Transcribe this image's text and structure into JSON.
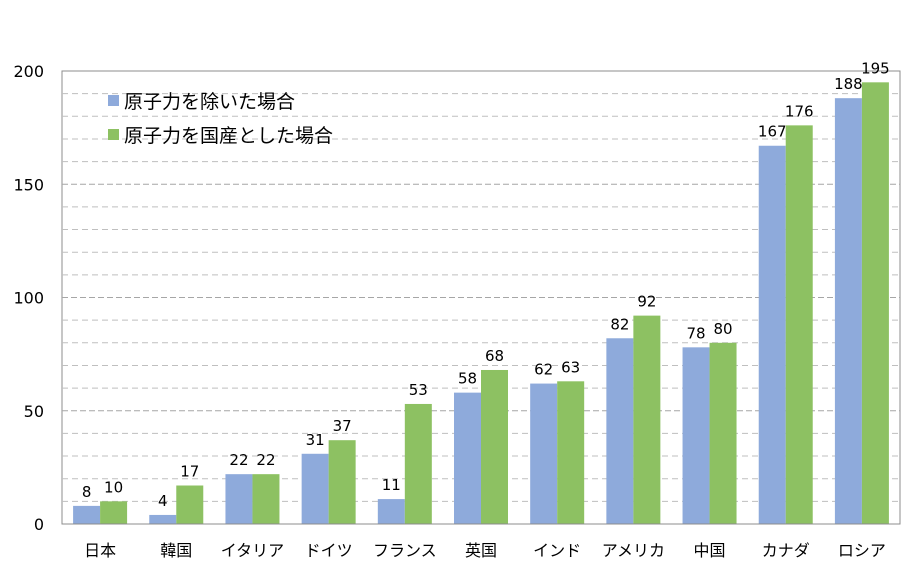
{
  "chart_data": {
    "type": "bar",
    "categories": [
      "日本",
      "韓国",
      "イタリア",
      "ドイツ",
      "フランス",
      "英国",
      "インド",
      "アメリカ",
      "中国",
      "カナダ",
      "ロシア"
    ],
    "series": [
      {
        "name": "原子力を除いた場合",
        "color": "#8eaadb",
        "values": [
          8,
          4,
          22,
          31,
          11,
          58,
          62,
          82,
          78,
          167,
          188
        ]
      },
      {
        "name": "原子力を国産とした場合",
        "color": "#8dc162",
        "values": [
          10,
          17,
          22,
          37,
          53,
          68,
          63,
          92,
          80,
          176,
          195
        ]
      }
    ],
    "ylim": [
      0,
      200
    ],
    "yticks": [
      0,
      50,
      100,
      150,
      200
    ],
    "grid": true,
    "legend_position": "top-left"
  }
}
